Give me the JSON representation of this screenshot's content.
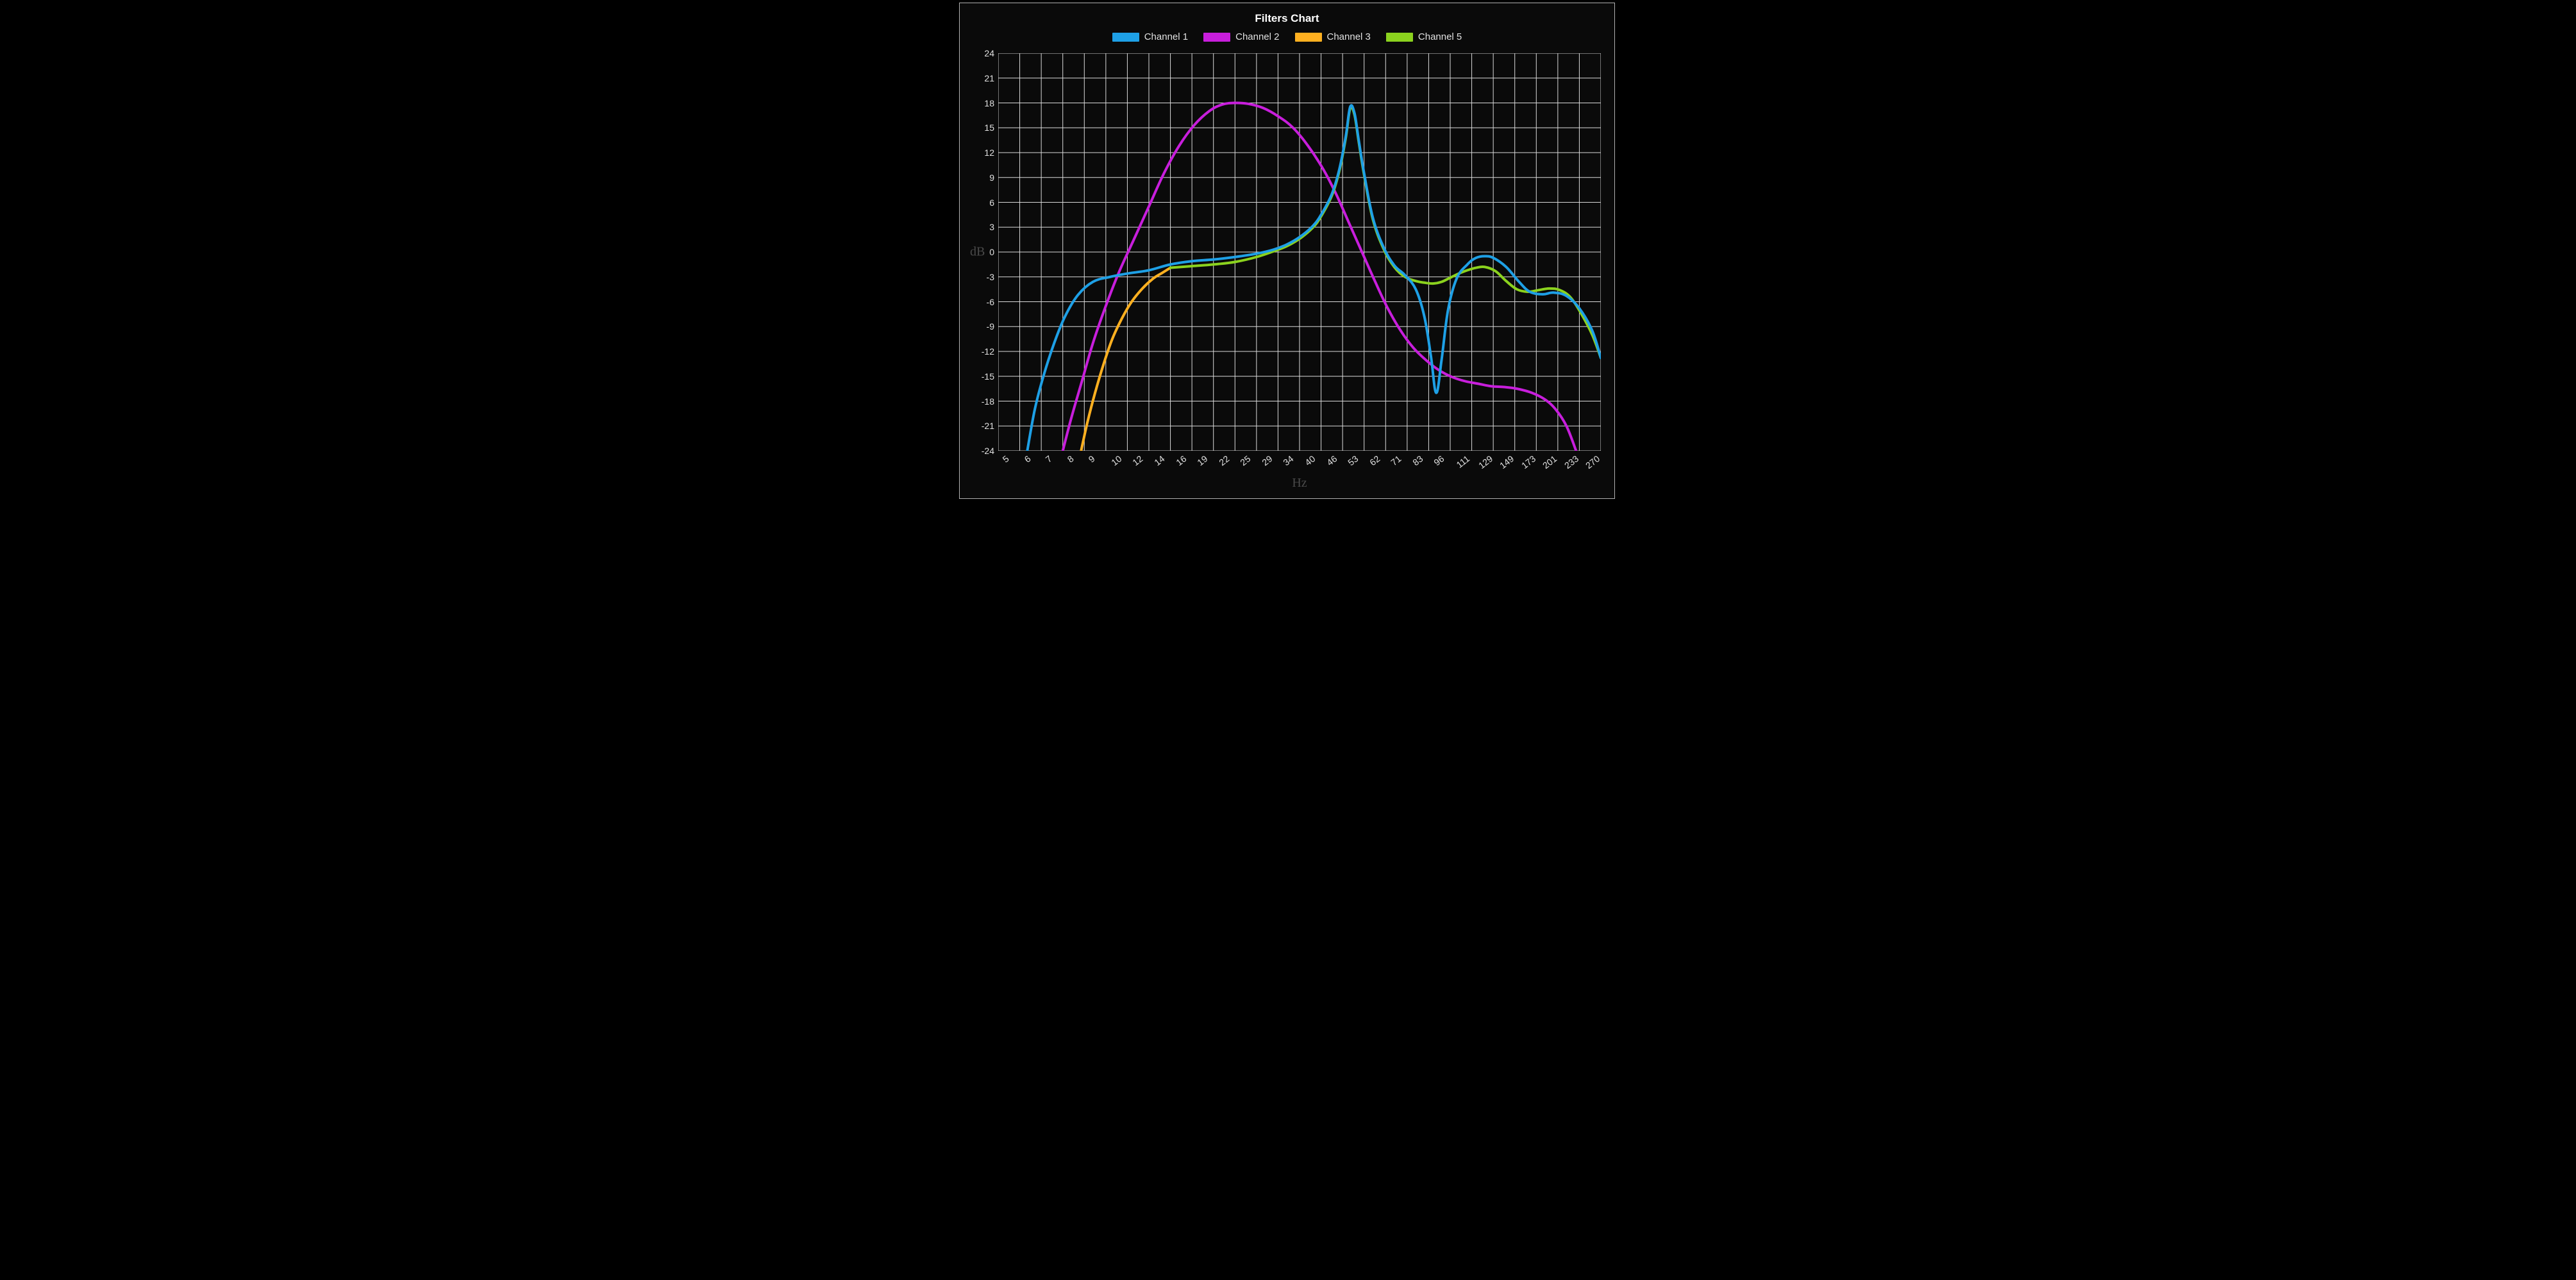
{
  "chart": {
    "type": "line",
    "title": "Filters Chart",
    "title_fontsize": 17,
    "title_fontweight": "bold",
    "title_color": "#ffffff",
    "background_color": "#0a0a0a",
    "page_background_color": "#000000",
    "panel_border_color": "#b0b0b0",
    "grid_color": "#ffffff",
    "grid_width": 1,
    "tick_label_color": "#e0e0e0",
    "tick_label_fontsize": 14,
    "axis_label_color": "#4a4a4a",
    "axis_label_fontsize": 20,
    "x_label": "Hz",
    "y_label": "dB",
    "line_width": 4,
    "legend": {
      "position": "top-center",
      "swatch_width": 42,
      "swatch_height": 14,
      "fontsize": 15,
      "color": "#e0e0e0",
      "items": [
        {
          "label": "Channel 1",
          "color": "#1ea0e6"
        },
        {
          "label": "Channel 2",
          "color": "#c81edc"
        },
        {
          "label": "Channel 3",
          "color": "#ffb020"
        },
        {
          "label": "Channel 5",
          "color": "#8bd21e"
        }
      ]
    },
    "x_axis": {
      "scale": "index-of-log-spaced-labels",
      "ticks": [
        5,
        6,
        7,
        8,
        9,
        10,
        12,
        14,
        16,
        19,
        22,
        25,
        29,
        34,
        40,
        46,
        53,
        62,
        71,
        83,
        96,
        111,
        129,
        149,
        173,
        201,
        233,
        270
      ],
      "label_rotation_deg": -38,
      "columns": 28
    },
    "y_axis": {
      "scale": "linear",
      "min": -24,
      "max": 24,
      "tick_step": 3,
      "ticks": [
        24,
        21,
        18,
        15,
        12,
        9,
        6,
        3,
        0,
        -3,
        -6,
        -9,
        -12,
        -15,
        -18,
        -21,
        -24
      ]
    },
    "series": [
      {
        "name": "Channel 1",
        "color": "#1ea0e6",
        "points": [
          [
            1.35,
            -24
          ],
          [
            1.7,
            -19
          ],
          [
            2.1,
            -15
          ],
          [
            2.6,
            -11
          ],
          [
            3.1,
            -7.8
          ],
          [
            3.7,
            -5.2
          ],
          [
            4.4,
            -3.6
          ],
          [
            5.2,
            -3.0
          ],
          [
            6.0,
            -2.6
          ],
          [
            7.0,
            -2.2
          ],
          [
            8.0,
            -1.5
          ],
          [
            9.0,
            -1.1
          ],
          [
            10.0,
            -0.9
          ],
          [
            11.0,
            -0.6
          ],
          [
            12.0,
            -0.2
          ],
          [
            12.8,
            0.3
          ],
          [
            13.4,
            0.9
          ],
          [
            14.0,
            1.8
          ],
          [
            14.6,
            3.1
          ],
          [
            15.0,
            4.5
          ],
          [
            15.5,
            7.0
          ],
          [
            15.85,
            10.0
          ],
          [
            16.15,
            14.0
          ],
          [
            16.35,
            17.5
          ],
          [
            16.55,
            16.8
          ],
          [
            16.75,
            13.5
          ],
          [
            17.0,
            9.5
          ],
          [
            17.4,
            4.2
          ],
          [
            17.9,
            0.6
          ],
          [
            18.4,
            -1.6
          ],
          [
            18.9,
            -2.8
          ],
          [
            19.4,
            -4.5
          ],
          [
            19.8,
            -7.8
          ],
          [
            20.1,
            -12.5
          ],
          [
            20.35,
            -17.0
          ],
          [
            20.6,
            -13.0
          ],
          [
            20.9,
            -7.0
          ],
          [
            21.3,
            -3.2
          ],
          [
            21.8,
            -1.5
          ],
          [
            22.2,
            -0.7
          ],
          [
            22.6,
            -0.5
          ],
          [
            23.0,
            -0.7
          ],
          [
            23.6,
            -1.8
          ],
          [
            24.2,
            -3.6
          ],
          [
            24.7,
            -4.8
          ],
          [
            25.3,
            -5.1
          ],
          [
            25.8,
            -4.9
          ],
          [
            26.4,
            -5.3
          ],
          [
            27.0,
            -6.8
          ],
          [
            27.6,
            -9.5
          ],
          [
            28.0,
            -12.8
          ]
        ]
      },
      {
        "name": "Channel 2",
        "color": "#c81edc",
        "points": [
          [
            3.0,
            -24
          ],
          [
            3.4,
            -20
          ],
          [
            3.9,
            -15.5
          ],
          [
            4.4,
            -11
          ],
          [
            5.0,
            -6.5
          ],
          [
            5.6,
            -2.5
          ],
          [
            6.3,
            1.5
          ],
          [
            7.0,
            5.5
          ],
          [
            7.7,
            9.5
          ],
          [
            8.4,
            12.8
          ],
          [
            9.1,
            15.3
          ],
          [
            9.8,
            17.0
          ],
          [
            10.4,
            17.8
          ],
          [
            11.0,
            18.0
          ],
          [
            11.6,
            17.9
          ],
          [
            12.3,
            17.4
          ],
          [
            13.0,
            16.4
          ],
          [
            13.7,
            15.0
          ],
          [
            14.4,
            12.8
          ],
          [
            15.1,
            10.0
          ],
          [
            15.7,
            7.0
          ],
          [
            16.3,
            3.5
          ],
          [
            16.9,
            0.0
          ],
          [
            17.5,
            -3.5
          ],
          [
            18.1,
            -6.8
          ],
          [
            18.7,
            -9.5
          ],
          [
            19.3,
            -11.6
          ],
          [
            19.9,
            -13.1
          ],
          [
            20.5,
            -14.3
          ],
          [
            21.1,
            -15.1
          ],
          [
            21.7,
            -15.6
          ],
          [
            22.3,
            -15.9
          ],
          [
            22.9,
            -16.2
          ],
          [
            23.5,
            -16.3
          ],
          [
            24.1,
            -16.5
          ],
          [
            24.8,
            -17.0
          ],
          [
            25.4,
            -17.8
          ],
          [
            25.9,
            -19.0
          ],
          [
            26.4,
            -21.0
          ],
          [
            26.85,
            -24.0
          ]
        ]
      },
      {
        "name": "Channel 3",
        "color": "#ffb020",
        "points": [
          [
            3.85,
            -24
          ],
          [
            4.15,
            -20.5
          ],
          [
            4.5,
            -17
          ],
          [
            4.9,
            -13.5
          ],
          [
            5.3,
            -10.5
          ],
          [
            5.75,
            -8.0
          ],
          [
            6.2,
            -6.0
          ],
          [
            6.7,
            -4.4
          ],
          [
            7.2,
            -3.2
          ],
          [
            7.6,
            -2.55
          ],
          [
            8.0,
            -1.9
          ]
        ]
      },
      {
        "name": "Channel 5",
        "color": "#8bd21e",
        "points": [
          [
            8.0,
            -1.9
          ],
          [
            9.0,
            -1.7
          ],
          [
            10.0,
            -1.5
          ],
          [
            11.0,
            -1.2
          ],
          [
            12.0,
            -0.6
          ],
          [
            12.8,
            0.1
          ],
          [
            13.4,
            0.7
          ],
          [
            14.0,
            1.6
          ],
          [
            14.6,
            2.9
          ],
          [
            15.0,
            4.3
          ],
          [
            15.5,
            6.8
          ],
          [
            15.85,
            9.8
          ],
          [
            16.15,
            13.8
          ],
          [
            16.35,
            17.3
          ],
          [
            16.55,
            16.6
          ],
          [
            16.75,
            13.3
          ],
          [
            17.0,
            9.3
          ],
          [
            17.4,
            4.0
          ],
          [
            17.9,
            0.4
          ],
          [
            18.4,
            -1.8
          ],
          [
            18.9,
            -3.0
          ],
          [
            19.4,
            -3.5
          ],
          [
            19.8,
            -3.7
          ],
          [
            20.2,
            -3.8
          ],
          [
            20.6,
            -3.6
          ],
          [
            21.0,
            -3.1
          ],
          [
            21.4,
            -2.6
          ],
          [
            21.8,
            -2.2
          ],
          [
            22.2,
            -1.9
          ],
          [
            22.6,
            -1.8
          ],
          [
            23.1,
            -2.3
          ],
          [
            23.6,
            -3.5
          ],
          [
            24.1,
            -4.5
          ],
          [
            24.6,
            -4.8
          ],
          [
            25.1,
            -4.6
          ],
          [
            25.6,
            -4.4
          ],
          [
            26.1,
            -4.6
          ],
          [
            26.6,
            -5.5
          ],
          [
            27.1,
            -7.5
          ],
          [
            27.6,
            -10.0
          ],
          [
            28.0,
            -12.8
          ]
        ]
      }
    ]
  }
}
